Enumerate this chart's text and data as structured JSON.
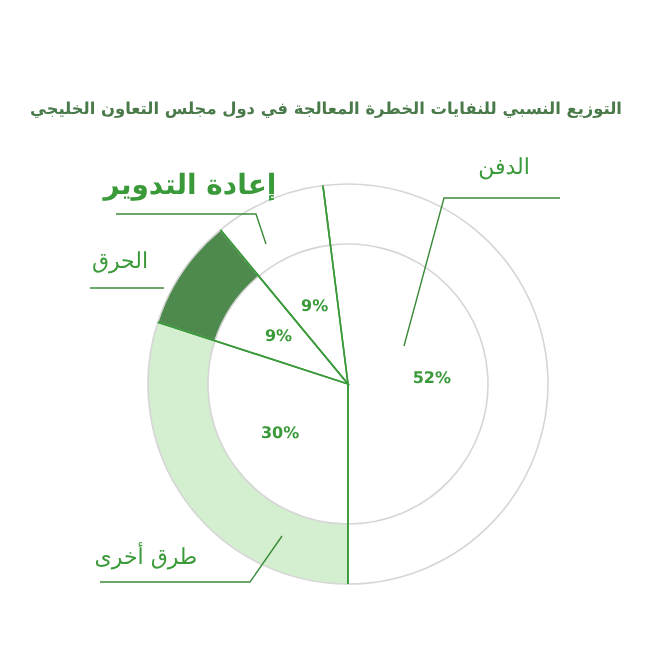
{
  "chart_data": {
    "type": "donut",
    "title": "التوزيع النسبي للنفايات الخطرة المعالجة في دول مجلس التعاون الخليجي",
    "categories": [
      "الدفن",
      "طرق أخرى",
      "الحرق",
      "إعادة التدوير"
    ],
    "values": [
      52,
      30,
      9,
      9
    ],
    "colors": [
      "#ffffff",
      "#d4efcf",
      "#4e8a4e",
      "#ffffff"
    ],
    "value_labels": [
      "52%",
      "30%",
      "9%",
      "9%"
    ]
  }
}
